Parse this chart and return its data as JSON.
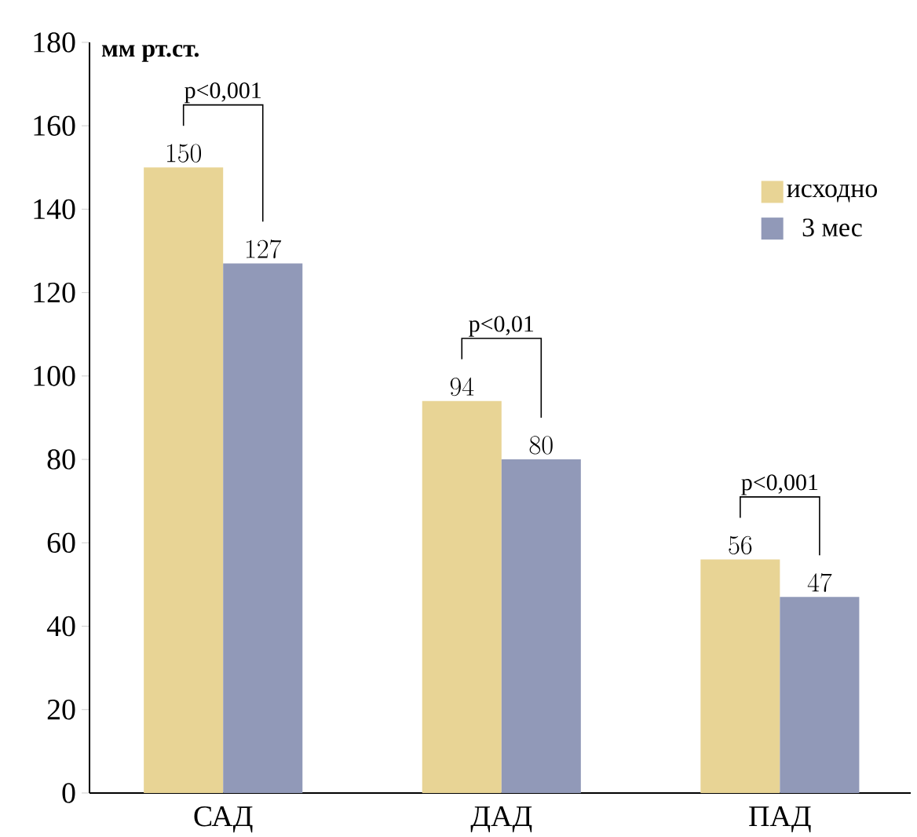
{
  "chart_data": {
    "type": "bar",
    "ylabel": "мм рт.ст.",
    "categories": [
      "САД",
      "ДАД",
      "ПАД"
    ],
    "series": [
      {
        "name": "исходно",
        "color": "#e8d495",
        "values": [
          150,
          94,
          56
        ]
      },
      {
        "name": "3 мес",
        "color": "#9199b8",
        "values": [
          127,
          80,
          47
        ]
      }
    ],
    "ylim": [
      0,
      180
    ],
    "yticks": [
      0,
      20,
      40,
      60,
      80,
      100,
      120,
      140,
      160,
      180
    ],
    "data_labels": true,
    "legend": "top right",
    "annotations": [
      "p<0,001",
      "p<0,01",
      "p<0,001"
    ]
  }
}
